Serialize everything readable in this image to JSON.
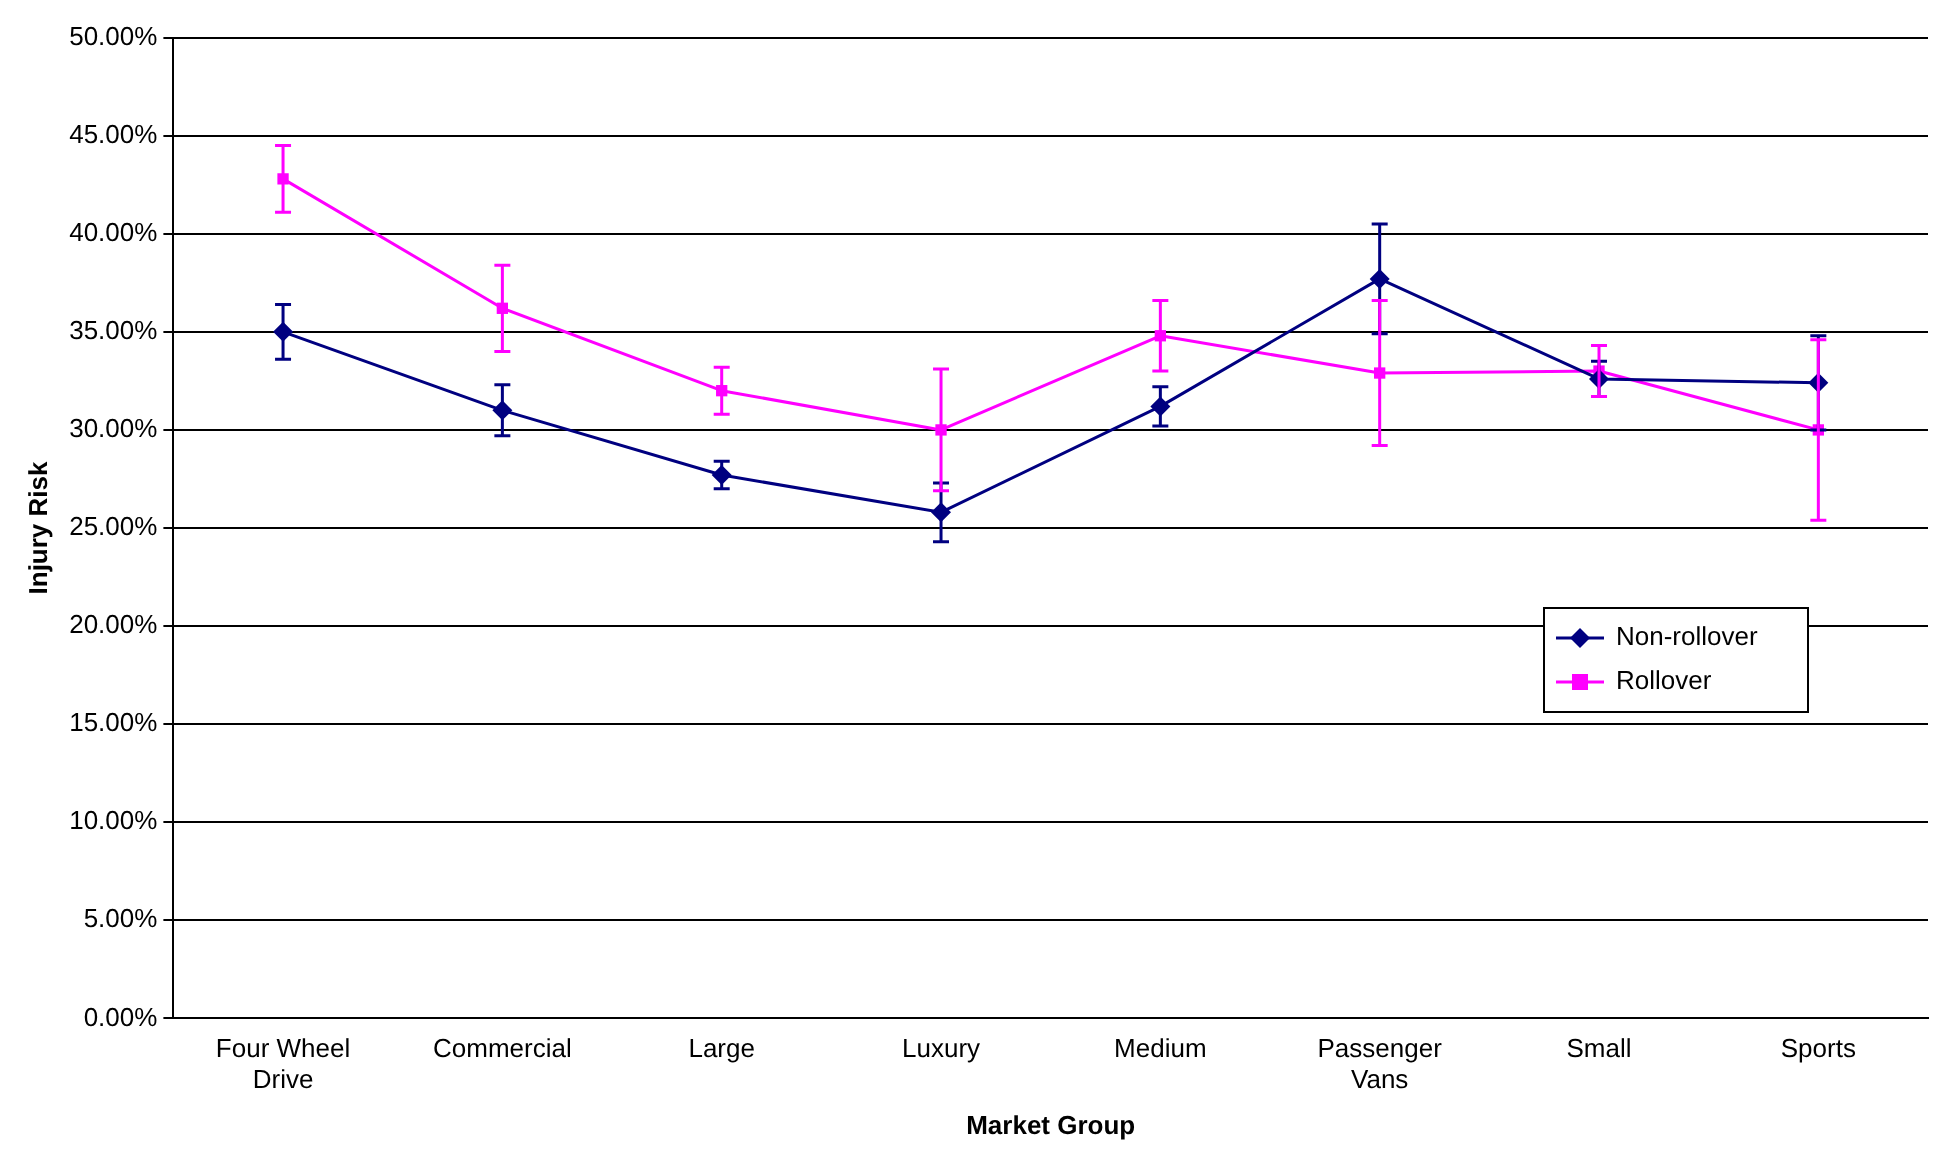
{
  "chart_data": {
    "type": "line",
    "xlabel": "Market Group",
    "ylabel": "Injury Risk",
    "categories": [
      "Four Wheel Drive",
      "Commercial",
      "Large",
      "Luxury",
      "Medium",
      "Passenger Vans",
      "Small",
      "Sports"
    ],
    "series": [
      {
        "name": "Non-rollover",
        "color": "#000080",
        "marker": "diamond",
        "values": [
          35.0,
          31.0,
          27.7,
          25.8,
          31.2,
          37.7,
          32.6,
          32.4
        ],
        "errors": [
          1.4,
          1.3,
          0.7,
          1.5,
          1.0,
          2.8,
          0.9,
          2.4
        ]
      },
      {
        "name": "Rollover",
        "color": "#ff00ff",
        "marker": "square",
        "values": [
          42.8,
          36.2,
          32.0,
          30.0,
          34.8,
          32.9,
          33.0,
          30.0
        ],
        "errors": [
          1.7,
          2.2,
          1.2,
          3.1,
          1.8,
          3.7,
          1.3,
          4.6
        ]
      }
    ],
    "ylim": [
      0,
      50
    ],
    "yticks": [
      {
        "value": 0,
        "label": "0.00%"
      },
      {
        "value": 5,
        "label": "5.00%"
      },
      {
        "value": 10,
        "label": "10.00%"
      },
      {
        "value": 15,
        "label": "15.00%"
      },
      {
        "value": 20,
        "label": "20.00%"
      },
      {
        "value": 25,
        "label": "25.00%"
      },
      {
        "value": 30,
        "label": "30.00%"
      },
      {
        "value": 35,
        "label": "35.00%"
      },
      {
        "value": 40,
        "label": "40.00%"
      },
      {
        "value": 45,
        "label": "45.00%"
      },
      {
        "value": 50,
        "label": "50.00%"
      }
    ],
    "grid": "y",
    "legend": "right",
    "line_style": "solid"
  }
}
